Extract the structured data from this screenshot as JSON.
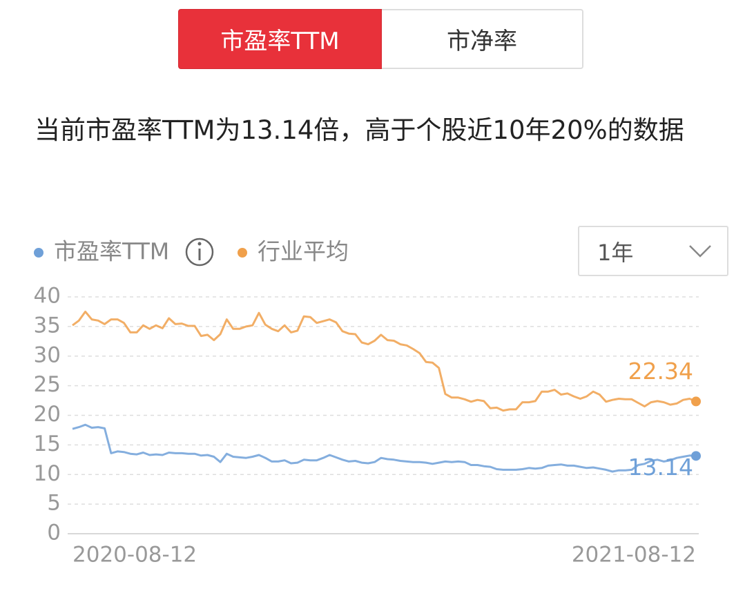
{
  "tabs": {
    "items": [
      "市盈率TTM",
      "市净率"
    ],
    "active": 0
  },
  "headline": "当前市盈率TTM为13.14倍，高于个股近10年20%的数据",
  "period_select": "1年",
  "chart_data": {
    "type": "line",
    "categories": [
      "2020-08-12",
      null,
      null,
      null,
      null,
      null,
      null,
      null,
      null,
      null,
      null,
      null,
      null,
      null,
      null,
      null,
      null,
      null,
      null,
      null,
      null,
      null,
      null,
      null,
      null,
      null,
      null,
      null,
      null,
      null,
      null,
      null,
      null,
      null,
      null,
      null,
      null,
      null,
      null,
      null,
      null,
      null,
      null,
      null,
      null,
      null,
      null,
      null,
      null,
      null,
      null,
      null,
      null,
      null,
      null,
      null,
      null,
      null,
      null,
      null,
      null,
      null,
      null,
      null,
      null,
      null,
      null,
      null,
      null,
      null,
      null,
      null,
      null,
      null,
      null,
      null,
      null,
      null,
      null,
      null,
      null,
      null,
      null,
      null,
      null,
      null,
      null,
      null,
      null,
      null,
      null,
      null,
      null,
      null,
      null,
      null,
      null,
      "2021-08-12"
    ],
    "series": [
      {
        "name": "市盈率TTM",
        "color": "#6fa0d8",
        "values": [
          17.7,
          18,
          18.4,
          17.9,
          18,
          17.8,
          13.6,
          13.9,
          13.8,
          13.5,
          13.4,
          13.7,
          13.3,
          13.4,
          13.3,
          13.7,
          13.6,
          13.6,
          13.5,
          13.5,
          13.2,
          13.3,
          13,
          12.1,
          13.5,
          13,
          12.9,
          12.8,
          13,
          13.3,
          12.8,
          12.2,
          12.2,
          12.4,
          11.9,
          12,
          12.5,
          12.4,
          12.4,
          12.8,
          13.3,
          12.9,
          12.5,
          12.2,
          12.3,
          12,
          11.9,
          12.1,
          12.8,
          12.6,
          12.5,
          12.3,
          12.2,
          12.1,
          12.1,
          12,
          11.8,
          12,
          12.2,
          12.1,
          12.2,
          12.1,
          11.6,
          11.6,
          11.4,
          11.3,
          10.9,
          10.8,
          10.8,
          10.8,
          10.9,
          11.1,
          11,
          11.1,
          11.5,
          11.6,
          11.7,
          11.5,
          11.5,
          11.3,
          11.1,
          11.2,
          11,
          10.8,
          10.5,
          10.7,
          10.7,
          10.8,
          11.6,
          11.8,
          12.3,
          12.5,
          12.2,
          12.4,
          12.8,
          13,
          13.2,
          13.14
        ]
      },
      {
        "name": "行业平均",
        "color": "#f0a04b",
        "values": [
          35.2,
          36,
          37.5,
          36.2,
          36,
          35.4,
          36.2,
          36.2,
          35.6,
          34,
          34,
          35.2,
          34.6,
          35.2,
          34.7,
          36.4,
          35.4,
          35.5,
          35.1,
          35.1,
          33.4,
          33.6,
          32.7,
          33.7,
          36.2,
          34.6,
          34.6,
          35,
          35.2,
          37.3,
          35.3,
          34.6,
          34.2,
          35.2,
          34,
          34.3,
          36.7,
          36.6,
          35.6,
          35.9,
          36.2,
          35.7,
          34.2,
          33.8,
          33.7,
          32.3,
          32,
          32.6,
          33.6,
          32.7,
          32.6,
          32,
          31.8,
          31.2,
          30.5,
          29,
          28.9,
          28,
          23.6,
          23,
          23,
          22.7,
          22.3,
          22.6,
          22.4,
          21.2,
          21.3,
          20.8,
          21,
          21,
          22.2,
          22.2,
          22.4,
          24,
          24,
          24.3,
          23.5,
          23.7,
          23.2,
          22.8,
          23.2,
          24,
          23.5,
          22.3,
          22.6,
          22.8,
          22.7,
          22.7,
          22.1,
          21.5,
          22.2,
          22.4,
          22.2,
          21.8,
          22,
          22.6,
          22.8,
          22.34
        ]
      }
    ],
    "ylim": [
      0,
      40
    ],
    "yticks": [
      0,
      5,
      10,
      15,
      20,
      25,
      30,
      35,
      40
    ],
    "grid": true
  }
}
